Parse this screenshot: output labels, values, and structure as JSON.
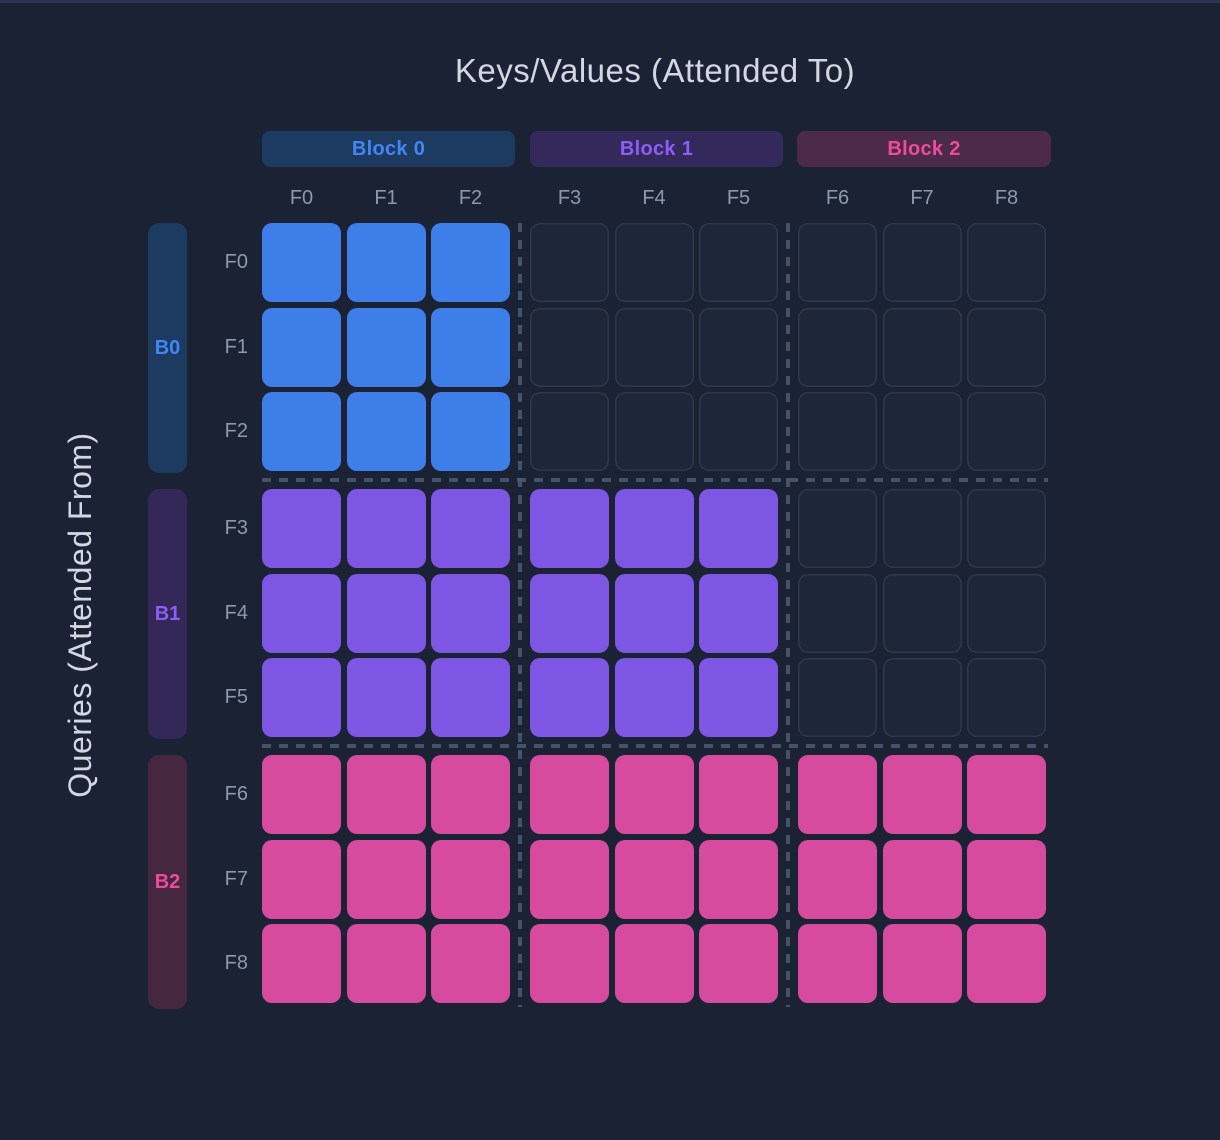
{
  "titles": {
    "columns_axis": "Keys/Values (Attended To)",
    "rows_axis": "Queries (Attended From)"
  },
  "blocks": [
    {
      "id": "B0",
      "label": "Block 0",
      "text_color": "#4286f5",
      "header_bg": "#1d3a60",
      "bar_bg": "#1d3a60",
      "cell_color": "#3e7ee9",
      "frames": [
        "F0",
        "F1",
        "F2"
      ]
    },
    {
      "id": "B1",
      "label": "Block 1",
      "text_color": "#8e5cf6",
      "header_bg": "#33295a",
      "bar_bg": "#332857",
      "cell_color": "#7d57e3",
      "frames": [
        "F3",
        "F4",
        "F5"
      ]
    },
    {
      "id": "B2",
      "label": "Block 2",
      "text_color": "#ef4b9c",
      "header_bg": "#4b2a4a",
      "bar_bg": "#45283f",
      "cell_color": "#d74b9f",
      "frames": [
        "F6",
        "F7",
        "F8"
      ]
    }
  ],
  "grid": {
    "col_labels": [
      "F0",
      "F1",
      "F2",
      "F3",
      "F4",
      "F5",
      "F6",
      "F7",
      "F8"
    ],
    "row_labels": [
      "F0",
      "F1",
      "F2",
      "F3",
      "F4",
      "F5",
      "F6",
      "F7",
      "F8"
    ],
    "mask": [
      [
        1,
        1,
        1,
        0,
        0,
        0,
        0,
        0,
        0
      ],
      [
        1,
        1,
        1,
        0,
        0,
        0,
        0,
        0,
        0
      ],
      [
        1,
        1,
        1,
        0,
        0,
        0,
        0,
        0,
        0
      ],
      [
        1,
        1,
        1,
        1,
        1,
        1,
        0,
        0,
        0
      ],
      [
        1,
        1,
        1,
        1,
        1,
        1,
        0,
        0,
        0
      ],
      [
        1,
        1,
        1,
        1,
        1,
        1,
        0,
        0,
        0
      ],
      [
        1,
        1,
        1,
        1,
        1,
        1,
        1,
        1,
        1
      ],
      [
        1,
        1,
        1,
        1,
        1,
        1,
        1,
        1,
        1
      ],
      [
        1,
        1,
        1,
        1,
        1,
        1,
        1,
        1,
        1
      ]
    ]
  },
  "colors": {
    "background": "#1a2234",
    "top_edge": "#2b3450",
    "label_gray": "#8d99ad",
    "title_gray": "#d2d8e2",
    "dashed_separator": "#4d5a70",
    "empty_cell_border": "rgba(148,163,184,0.14)"
  }
}
